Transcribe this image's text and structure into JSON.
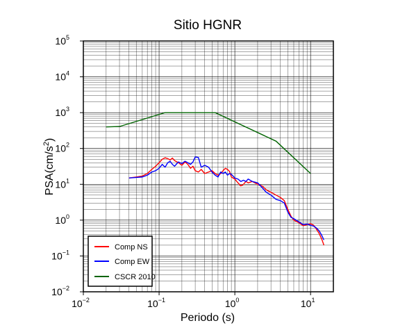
{
  "chart_data": {
    "type": "line",
    "title": "Sitio HGNR",
    "xlabel": "Periodo (s)",
    "ylabel_base": "PSA(cm/s",
    "ylabel_sup": "2",
    "ylabel_close": ")",
    "xscale": "log",
    "yscale": "log",
    "xlim": [
      0.01,
      20
    ],
    "ylim": [
      0.01,
      100000
    ],
    "grid": true,
    "legend_position": "bottom-left",
    "x_ticks": [
      {
        "base": "10",
        "exp": "−2"
      },
      {
        "base": "10",
        "exp": "−1"
      },
      {
        "base": "10",
        "exp": "0"
      },
      {
        "base": "10",
        "exp": "1"
      }
    ],
    "y_ticks": [
      {
        "base": "10",
        "exp": "−2"
      },
      {
        "base": "10",
        "exp": "−1"
      },
      {
        "base": "10",
        "exp": "0"
      },
      {
        "base": "10",
        "exp": "1"
      },
      {
        "base": "10",
        "exp": "2"
      },
      {
        "base": "10",
        "exp": "3"
      },
      {
        "base": "10",
        "exp": "4"
      },
      {
        "base": "10",
        "exp": "5"
      }
    ],
    "series": [
      {
        "name": "Comp NS",
        "color": "#ff0000",
        "x": [
          0.04,
          0.05,
          0.06,
          0.07,
          0.08,
          0.09,
          0.1,
          0.11,
          0.12,
          0.13,
          0.14,
          0.15,
          0.16,
          0.18,
          0.2,
          0.22,
          0.24,
          0.26,
          0.28,
          0.3,
          0.33,
          0.36,
          0.4,
          0.45,
          0.5,
          0.55,
          0.6,
          0.65,
          0.7,
          0.75,
          0.8,
          0.85,
          0.9,
          1.0,
          1.1,
          1.2,
          1.3,
          1.4,
          1.5,
          1.7,
          2.0,
          2.3,
          2.6,
          3.0,
          3.5,
          4.0,
          4.5,
          5.0,
          5.5,
          6.0,
          7.0,
          8.0,
          9.0,
          10.0,
          11.0,
          12.0,
          13.0,
          14.0,
          15.0
        ],
        "y": [
          15,
          16,
          17,
          20,
          26,
          32,
          40,
          50,
          55,
          52,
          48,
          54,
          46,
          40,
          34,
          42,
          36,
          28,
          32,
          24,
          22,
          26,
          20,
          22,
          24,
          20,
          18,
          20,
          24,
          28,
          26,
          23,
          16,
          14,
          11,
          9,
          10,
          12,
          11,
          12,
          10,
          9,
          7,
          6,
          5,
          4.3,
          3.5,
          2.0,
          1.3,
          1.0,
          0.85,
          0.7,
          0.75,
          0.8,
          0.72,
          0.55,
          0.42,
          0.3,
          0.2
        ]
      },
      {
        "name": "Comp EW",
        "color": "#0000ff",
        "x": [
          0.04,
          0.05,
          0.06,
          0.07,
          0.08,
          0.09,
          0.1,
          0.11,
          0.12,
          0.13,
          0.14,
          0.15,
          0.16,
          0.18,
          0.2,
          0.22,
          0.24,
          0.26,
          0.28,
          0.3,
          0.33,
          0.36,
          0.4,
          0.45,
          0.5,
          0.55,
          0.6,
          0.65,
          0.7,
          0.75,
          0.8,
          0.85,
          0.9,
          1.0,
          1.1,
          1.2,
          1.3,
          1.4,
          1.5,
          1.7,
          2.0,
          2.3,
          2.6,
          3.0,
          3.5,
          4.0,
          4.5,
          5.0,
          5.5,
          6.0,
          7.0,
          8.0,
          9.0,
          10.0,
          11.0,
          12.0,
          13.0,
          14.0,
          15.0
        ],
        "y": [
          15,
          15.5,
          16,
          18,
          22,
          24,
          28,
          36,
          30,
          40,
          44,
          36,
          32,
          42,
          38,
          44,
          40,
          36,
          42,
          58,
          56,
          30,
          34,
          30,
          22,
          18,
          16,
          22,
          20,
          22,
          18,
          20,
          19,
          15,
          14,
          12,
          13,
          12,
          14,
          12,
          11,
          8,
          6,
          5,
          3.8,
          3.5,
          3.0,
          1.7,
          1.2,
          1.1,
          0.9,
          0.75,
          0.78,
          0.72,
          0.68,
          0.6,
          0.5,
          0.38,
          0.28
        ]
      },
      {
        "name": "CSCR 2010",
        "color": "#006400",
        "x": [
          0.02,
          0.03,
          0.12,
          0.55,
          3.5,
          10.0
        ],
        "y": [
          400,
          410,
          1000,
          1000,
          160,
          20
        ]
      }
    ]
  }
}
